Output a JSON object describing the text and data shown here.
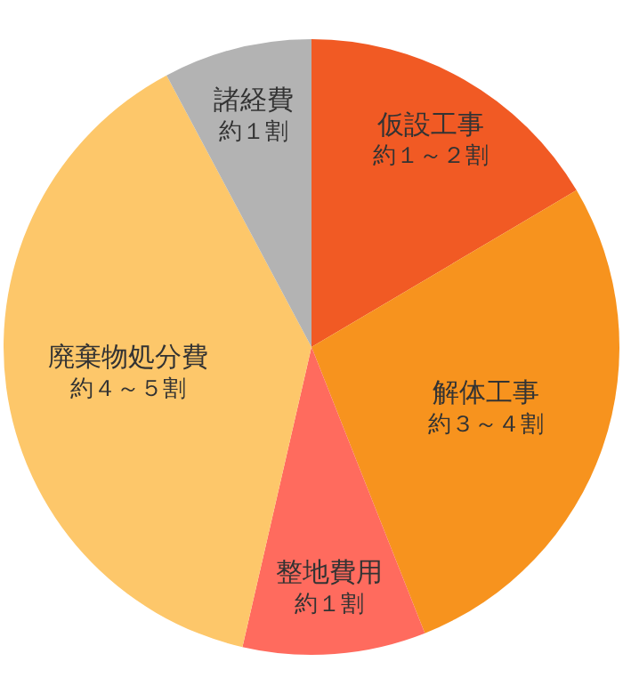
{
  "chart_data": {
    "type": "pie",
    "categories": [
      "仮設工事",
      "解体工事",
      "整地費用",
      "廃棄物処分費",
      "諸経費"
    ],
    "values": [
      16.5,
      27.5,
      9.6,
      38.6,
      7.8
    ],
    "colors": [
      "#f15a24",
      "#f7931e",
      "#ff6b5e",
      "#fdc76a",
      "#b3b3b3"
    ],
    "value_labels": [
      "約１～２割",
      "約３～４割",
      "約１割",
      "約４～５割",
      "約１割"
    ]
  }
}
